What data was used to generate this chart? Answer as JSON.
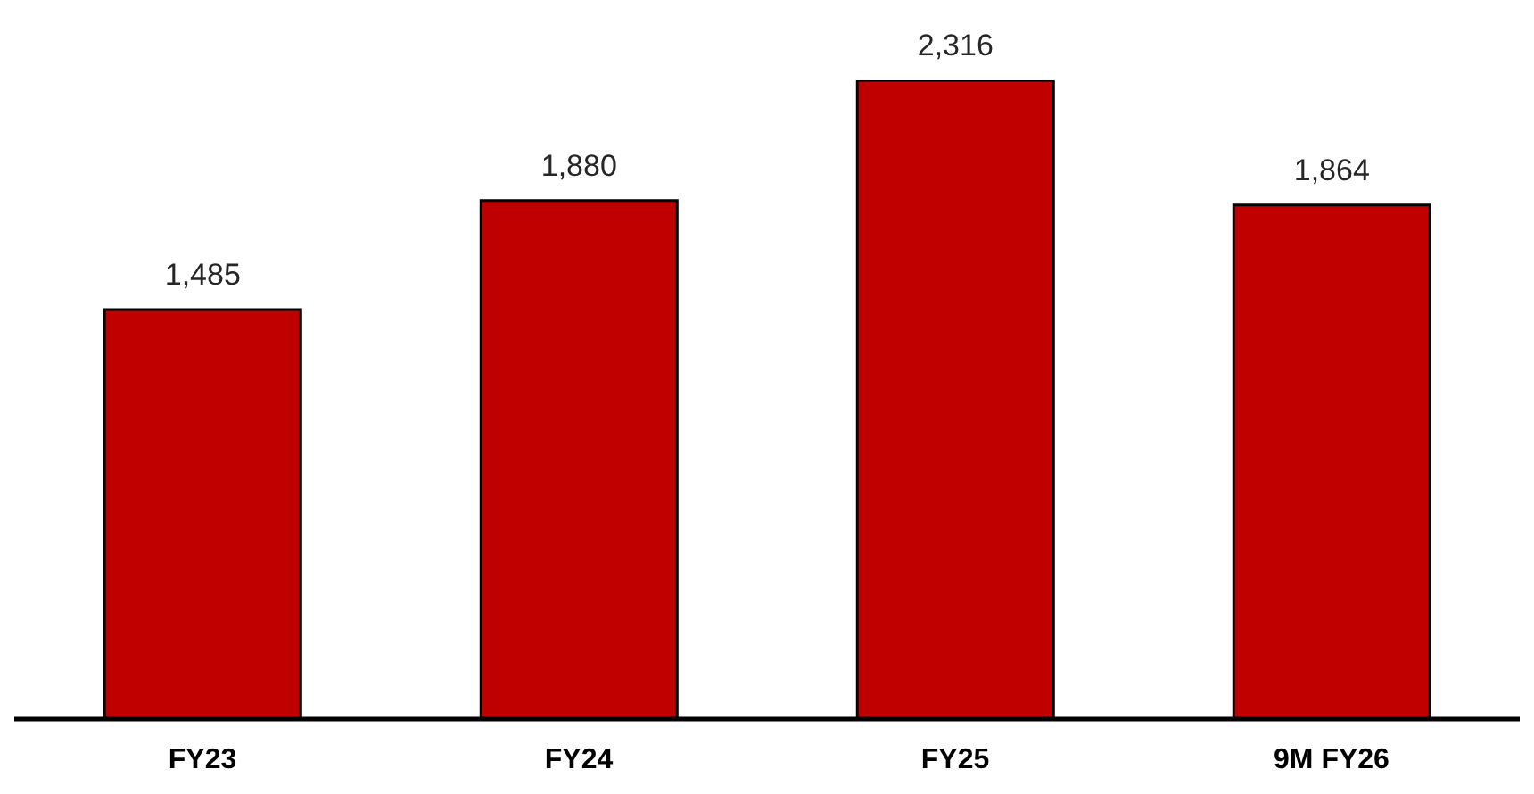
{
  "chart_data": {
    "type": "bar",
    "categories": [
      "FY23",
      "FY24",
      "FY25",
      "9M FY26"
    ],
    "values": [
      1485,
      1880,
      2316,
      1864
    ],
    "value_labels": [
      "1,485",
      "1,880",
      "2,316",
      "1,864"
    ],
    "color": "#c00000",
    "tick_labels": "x"
  }
}
